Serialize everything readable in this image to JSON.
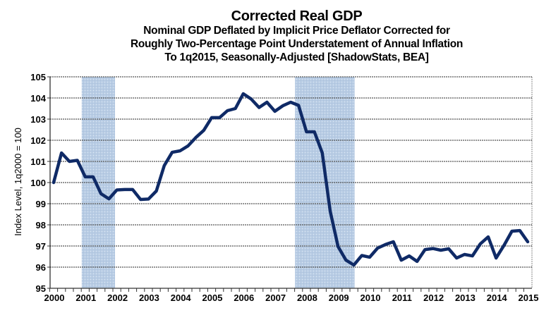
{
  "chart_data": {
    "type": "line",
    "title": "Corrected Real GDP",
    "subtitle_lines": [
      "Nominal GDP Deflated by Implicit Price Deflator Corrected for",
      "Roughly Two-Percentage Point Understatement of Annual Inflation",
      "To 1q2015, Seasonally-Adjusted [ShadowStats, BEA]"
    ],
    "xlabel": "",
    "ylabel": "Index Level, 1q2000 = 100",
    "ylim": [
      95,
      105
    ],
    "yticks": [
      95,
      96,
      97,
      98,
      99,
      100,
      101,
      102,
      103,
      104,
      105
    ],
    "xlim": [
      2000,
      2015
    ],
    "xticks": [
      "2000",
      "2001",
      "2002",
      "2003",
      "2004",
      "2005",
      "2006",
      "2007",
      "2008",
      "2009",
      "2010",
      "2011",
      "2012",
      "2013",
      "2014",
      "2015"
    ],
    "grid": true,
    "legend": "none",
    "line_color": "#0f2a66",
    "recession_color": "#b8cce4",
    "recessions": [
      {
        "start": 2001.0,
        "end": 2001.92
      },
      {
        "start": 2007.75,
        "end": 2009.5
      }
    ],
    "series": [
      {
        "name": "Corrected Real GDP",
        "x": [
          "1q2000",
          "2q2000",
          "3q2000",
          "4q2000",
          "1q2001",
          "2q2001",
          "3q2001",
          "4q2001",
          "1q2002",
          "2q2002",
          "3q2002",
          "4q2002",
          "1q2003",
          "2q2003",
          "3q2003",
          "4q2003",
          "1q2004",
          "2q2004",
          "3q2004",
          "4q2004",
          "1q2005",
          "2q2005",
          "3q2005",
          "4q2005",
          "1q2006",
          "2q2006",
          "3q2006",
          "4q2006",
          "1q2007",
          "2q2007",
          "3q2007",
          "4q2007",
          "1q2008",
          "2q2008",
          "3q2008",
          "4q2008",
          "1q2009",
          "2q2009",
          "3q2009",
          "4q2009",
          "1q2010",
          "2q2010",
          "3q2010",
          "4q2010",
          "1q2011",
          "2q2011",
          "3q2011",
          "4q2011",
          "1q2012",
          "2q2012",
          "3q2012",
          "4q2012",
          "1q2013",
          "2q2013",
          "3q2013",
          "4q2013",
          "1q2014",
          "2q2014",
          "3q2014",
          "4q2014",
          "1q2015"
        ],
        "values": [
          100.0,
          101.4,
          101.0,
          101.05,
          100.27,
          100.27,
          99.47,
          99.23,
          99.65,
          99.67,
          99.67,
          99.2,
          99.22,
          99.6,
          100.8,
          101.43,
          101.5,
          101.73,
          102.13,
          102.47,
          103.07,
          103.07,
          103.4,
          103.5,
          104.2,
          103.95,
          103.55,
          103.8,
          103.37,
          103.63,
          103.8,
          103.65,
          102.4,
          102.4,
          101.4,
          98.65,
          96.97,
          96.33,
          96.1,
          96.55,
          96.47,
          96.9,
          97.07,
          97.2,
          96.33,
          96.53,
          96.27,
          96.83,
          96.88,
          96.8,
          96.87,
          96.43,
          96.6,
          96.53,
          97.1,
          97.43,
          96.43,
          97.03,
          97.7,
          97.73,
          97.2
        ]
      }
    ]
  }
}
